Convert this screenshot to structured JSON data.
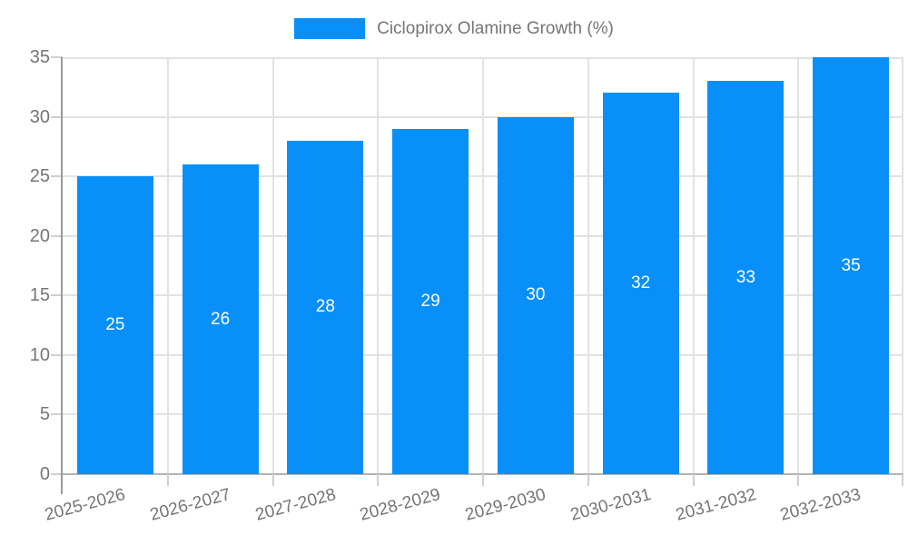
{
  "chart_data": {
    "type": "bar",
    "title": "",
    "legend": {
      "label": "Ciclopirox Olamine Growth (%)",
      "position": "top-center"
    },
    "categories": [
      "2025-2026",
      "2026-2027",
      "2027-2028",
      "2028-2029",
      "2029-2030",
      "2030-2031",
      "2031-2032",
      "2032-2033"
    ],
    "series": [
      {
        "name": "Ciclopirox Olamine Growth (%)",
        "values": [
          25,
          26,
          28,
          29,
          30,
          32,
          33,
          35
        ],
        "color": "#0890f8"
      }
    ],
    "xlabel": "",
    "ylabel": "",
    "ylim": [
      0,
      35
    ],
    "yticks": [
      0,
      5,
      10,
      15,
      20,
      25,
      30,
      35
    ],
    "grid": true,
    "x_label_rotation_deg": -15,
    "value_labels": {
      "show": true,
      "position": "inside-center",
      "color": "#ffffff"
    },
    "colors": {
      "bar": "#0890f8",
      "axis_text": "#757575",
      "gridline": "#e2e2e2",
      "y_axis_line": "#9a9a9a",
      "x_axis_line": "#b3b3b3",
      "tick": "#cfcfcf",
      "background": "#ffffff"
    }
  }
}
